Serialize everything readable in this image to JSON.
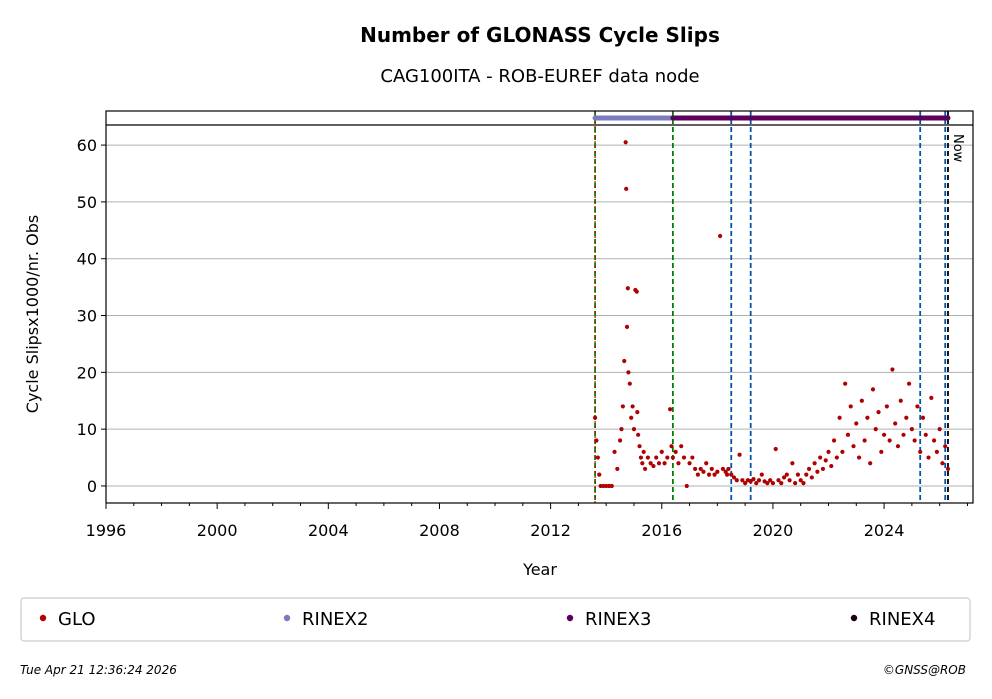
{
  "chart_data": {
    "type": "scatter",
    "title": "Number of GLONASS Cycle Slips",
    "subtitle": "CAG100ITA - ROB-EUREF data node",
    "xlabel": "Year",
    "ylabel": "Cycle Slipsx1000/nr. Obs",
    "xlim": [
      1996,
      2027.2
    ],
    "ylim": [
      -3,
      66
    ],
    "x_ticks": [
      1996,
      2000,
      2004,
      2008,
      2012,
      2016,
      2020,
      2024
    ],
    "y_ticks": [
      0,
      10,
      20,
      30,
      40,
      50,
      60
    ],
    "grid": "horizontal",
    "now_label": "Now",
    "now_x": 2026.3,
    "colors": {
      "GLO": "#b00000",
      "RINEX2": "#7b7bbf",
      "RINEX3": "#5c005c",
      "RINEX4": "#1a0018",
      "green_line": "#008000",
      "blue_line": "#0055aa",
      "red_line": "#cc0000"
    },
    "legend": [
      "GLO",
      "RINEX2",
      "RINEX3",
      "RINEX4"
    ],
    "legend_position": "bottom",
    "format_bars": [
      {
        "name": "RINEX2",
        "start": 2013.6,
        "end": 2016.4
      },
      {
        "name": "RINEX3",
        "start": 2016.4,
        "end": 2026.3
      }
    ],
    "event_lines": [
      {
        "type": "green",
        "x": 2013.6
      },
      {
        "type": "red",
        "x": 2013.6
      },
      {
        "type": "green",
        "x": 2016.4
      },
      {
        "type": "blue",
        "x": 2018.5
      },
      {
        "type": "blue",
        "x": 2019.2
      },
      {
        "type": "blue",
        "x": 2025.3
      },
      {
        "type": "blue",
        "x": 2026.2
      },
      {
        "type": "black",
        "x": 2026.3
      }
    ],
    "series": [
      {
        "name": "GLO",
        "x": [
          2013.6,
          2013.65,
          2013.7,
          2013.75,
          2013.8,
          2013.9,
          2014.0,
          2014.1,
          2014.2,
          2014.3,
          2014.4,
          2014.5,
          2014.55,
          2014.6,
          2014.65,
          2014.7,
          2014.72,
          2014.75,
          2014.78,
          2014.8,
          2014.85,
          2014.9,
          2014.95,
          2015.0,
          2015.05,
          2015.1,
          2015.12,
          2015.15,
          2015.2,
          2015.25,
          2015.3,
          2015.35,
          2015.4,
          2015.5,
          2015.6,
          2015.7,
          2015.8,
          2015.9,
          2016.0,
          2016.1,
          2016.2,
          2016.3,
          2016.35,
          2016.4,
          2016.5,
          2016.6,
          2016.7,
          2016.8,
          2016.9,
          2017.0,
          2017.1,
          2017.2,
          2017.3,
          2017.4,
          2017.5,
          2017.6,
          2017.7,
          2017.8,
          2017.9,
          2018.0,
          2018.1,
          2018.2,
          2018.3,
          2018.35,
          2018.4,
          2018.5,
          2018.6,
          2018.7,
          2018.8,
          2018.9,
          2019.0,
          2019.1,
          2019.2,
          2019.3,
          2019.4,
          2019.5,
          2019.6,
          2019.7,
          2019.8,
          2019.9,
          2020.0,
          2020.1,
          2020.2,
          2020.3,
          2020.4,
          2020.5,
          2020.6,
          2020.7,
          2020.8,
          2020.9,
          2021.0,
          2021.1,
          2021.2,
          2021.3,
          2021.4,
          2021.5,
          2021.6,
          2021.7,
          2021.8,
          2021.9,
          2022.0,
          2022.1,
          2022.2,
          2022.3,
          2022.4,
          2022.5,
          2022.6,
          2022.7,
          2022.8,
          2022.9,
          2023.0,
          2023.1,
          2023.2,
          2023.3,
          2023.4,
          2023.5,
          2023.6,
          2023.7,
          2023.8,
          2023.9,
          2024.0,
          2024.1,
          2024.2,
          2024.3,
          2024.4,
          2024.5,
          2024.6,
          2024.7,
          2024.8,
          2024.9,
          2025.0,
          2025.1,
          2025.2,
          2025.3,
          2025.4,
          2025.5,
          2025.6,
          2025.7,
          2025.8,
          2025.9,
          2026.0,
          2026.1,
          2026.2,
          2026.3
        ],
        "values": [
          12.0,
          8.0,
          5.0,
          2.0,
          0.0,
          0.0,
          0.0,
          0.0,
          0.0,
          6.0,
          3.0,
          8.0,
          10.0,
          14.0,
          22.0,
          60.5,
          52.3,
          28.0,
          34.8,
          20.0,
          18.0,
          12.0,
          14.0,
          10.0,
          34.5,
          34.2,
          13.0,
          9.0,
          7.0,
          5.0,
          4.0,
          6.0,
          3.0,
          5.0,
          4.0,
          3.5,
          5.0,
          4.0,
          6.0,
          4.0,
          5.0,
          13.5,
          7.0,
          5.0,
          6.0,
          4.0,
          7.0,
          5.0,
          0.0,
          4.0,
          5.0,
          3.0,
          2.0,
          3.0,
          2.5,
          4.0,
          2.0,
          3.0,
          2.0,
          2.5,
          44.0,
          3.0,
          2.5,
          2.0,
          3.0,
          2.0,
          1.5,
          1.0,
          5.5,
          1.0,
          0.5,
          1.0,
          0.8,
          1.2,
          0.5,
          1.0,
          2.0,
          0.8,
          0.5,
          1.0,
          0.5,
          6.5,
          1.0,
          0.5,
          1.5,
          2.0,
          1.0,
          4.0,
          0.5,
          2.0,
          1.0,
          0.5,
          2.0,
          3.0,
          1.5,
          4.0,
          2.5,
          5.0,
          3.0,
          4.5,
          6.0,
          3.5,
          8.0,
          5.0,
          12.0,
          6.0,
          18.0,
          9.0,
          14.0,
          7.0,
          11.0,
          5.0,
          15.0,
          8.0,
          12.0,
          4.0,
          17.0,
          10.0,
          13.0,
          6.0,
          9.0,
          14.0,
          8.0,
          20.5,
          11.0,
          7.0,
          15.0,
          9.0,
          12.0,
          18.0,
          10.0,
          8.0,
          14.0,
          6.0,
          12.0,
          9.0,
          5.0,
          15.5,
          8.0,
          6.0,
          10.0,
          4.0,
          7.0,
          3.0
        ]
      }
    ]
  },
  "footer": {
    "timestamp": "Tue Apr 21 12:36:24 2026",
    "copyright": "©GNSS@ROB"
  }
}
